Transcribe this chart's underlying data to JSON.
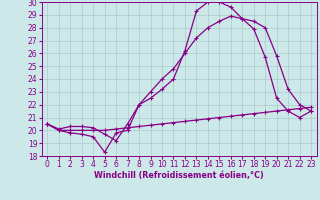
{
  "xlabel": "Windchill (Refroidissement éolien,°C)",
  "bg_color": "#cce8e8",
  "line_color": "#880088",
  "xlim": [
    -0.5,
    23.5
  ],
  "ylim": [
    18,
    30
  ],
  "xticks": [
    0,
    1,
    2,
    3,
    4,
    5,
    6,
    7,
    8,
    9,
    10,
    11,
    12,
    13,
    14,
    15,
    16,
    17,
    18,
    19,
    20,
    21,
    22,
    23
  ],
  "yticks": [
    18,
    19,
    20,
    21,
    22,
    23,
    24,
    25,
    26,
    27,
    28,
    29,
    30
  ],
  "line1_x": [
    0,
    1,
    2,
    3,
    4,
    5,
    6,
    7,
    8,
    9,
    10,
    11,
    12,
    13,
    14,
    15,
    16,
    17,
    18,
    19,
    20,
    21,
    22,
    23
  ],
  "line1_y": [
    20.5,
    20.0,
    19.8,
    19.7,
    19.5,
    18.3,
    19.8,
    20.0,
    22.0,
    22.5,
    23.2,
    24.0,
    26.2,
    29.3,
    30.0,
    30.0,
    29.6,
    28.7,
    27.9,
    25.7,
    22.5,
    21.5,
    21.0,
    21.5
  ],
  "line2_x": [
    0,
    1,
    2,
    3,
    4,
    5,
    6,
    7,
    8,
    9,
    10,
    11,
    12,
    13,
    14,
    15,
    16,
    17,
    18,
    19,
    20,
    21,
    22,
    23
  ],
  "line2_y": [
    20.5,
    20.1,
    20.3,
    20.3,
    20.2,
    19.7,
    19.2,
    20.5,
    22.0,
    23.0,
    24.0,
    24.8,
    26.0,
    27.2,
    28.0,
    28.5,
    28.9,
    28.7,
    28.5,
    28.0,
    25.8,
    23.2,
    22.0,
    21.5
  ],
  "line3_x": [
    0,
    1,
    2,
    3,
    4,
    5,
    6,
    7,
    8,
    9,
    10,
    11,
    12,
    13,
    14,
    15,
    16,
    17,
    18,
    19,
    20,
    21,
    22,
    23
  ],
  "line3_y": [
    20.5,
    20.0,
    20.0,
    20.0,
    20.0,
    20.0,
    20.1,
    20.2,
    20.3,
    20.4,
    20.5,
    20.6,
    20.7,
    20.8,
    20.9,
    21.0,
    21.1,
    21.2,
    21.3,
    21.4,
    21.5,
    21.6,
    21.7,
    21.8
  ],
  "grid_color": "#aacccc",
  "tick_fontsize": 5.5,
  "xlabel_fontsize": 5.8
}
